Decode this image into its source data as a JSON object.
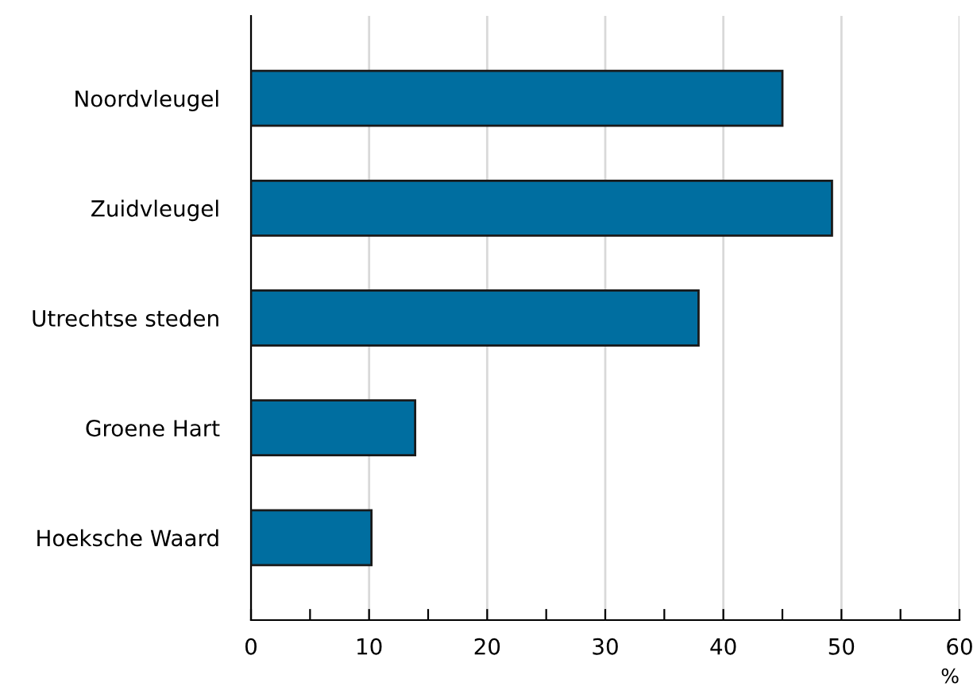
{
  "chart_data": {
    "type": "bar",
    "orientation": "horizontal",
    "xlabel": "%",
    "categories": [
      "Noordvleugel",
      "Zuidvleugel",
      "Utrechtse steden",
      "Groene Hart",
      "Hoeksche Waard"
    ],
    "values": [
      45,
      49.2,
      37.9,
      13.9,
      10.2
    ],
    "color": "#006ea0",
    "xlim": [
      0,
      60
    ],
    "xticks": [
      0,
      {
        "value": 5,
        "label": null
      },
      10,
      {
        "value": 15,
        "label": null
      },
      20,
      {
        "value": 25,
        "label": null
      },
      30,
      {
        "value": 35,
        "label": null
      },
      40,
      {
        "value": 45,
        "label": null
      },
      50,
      {
        "value": 55,
        "label": null
      },
      60
    ],
    "grid": "x"
  }
}
